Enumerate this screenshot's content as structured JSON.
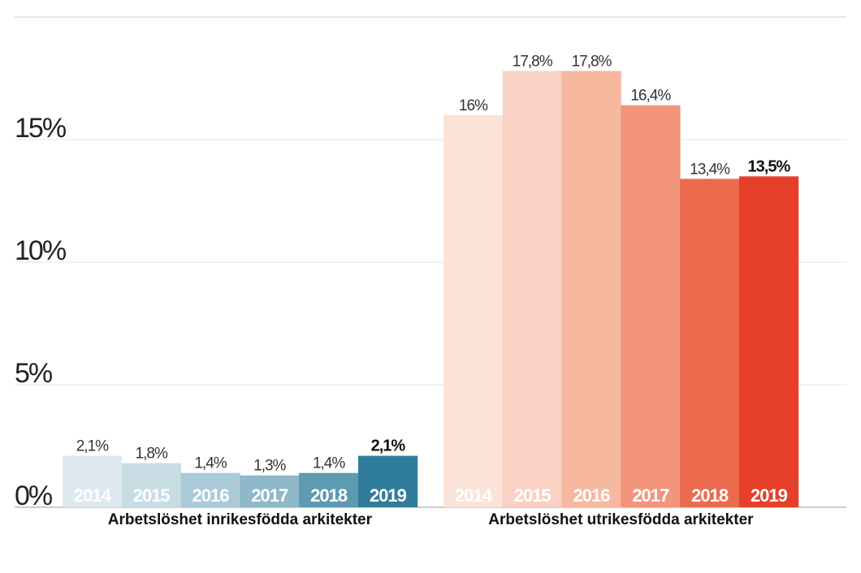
{
  "chart_data": {
    "type": "bar",
    "title": "",
    "xlabel": "",
    "ylabel": "",
    "ylim": [
      0,
      20
    ],
    "yticks": [
      {
        "value": 0,
        "label": "0%"
      },
      {
        "value": 5,
        "label": "5%"
      },
      {
        "value": 10,
        "label": "10%"
      },
      {
        "value": 15,
        "label": "15%"
      }
    ],
    "grid": true,
    "groups": [
      {
        "name": "Arbetslöshet inrikesfödda arkitekter",
        "categories": [
          "2014",
          "2015",
          "2016",
          "2017",
          "2018",
          "2019"
        ],
        "values": [
          2.1,
          1.8,
          1.4,
          1.3,
          1.4,
          2.1
        ],
        "labels": [
          "2,1%",
          "1,8%",
          "1,4%",
          "1,3%",
          "1,4%",
          "2,1%"
        ],
        "colors": [
          "#dde9ef",
          "#c8dce4",
          "#abcad7",
          "#8fb8c9",
          "#5e9ab1",
          "#2f7d9a"
        ]
      },
      {
        "name": "Arbetslöshet utrikesfödda arkitekter",
        "categories": [
          "2014",
          "2015",
          "2016",
          "2017",
          "2018",
          "2019"
        ],
        "values": [
          16,
          17.8,
          17.8,
          16.4,
          13.4,
          13.5
        ],
        "labels": [
          "16%",
          "17,8%",
          "17,8%",
          "16,4%",
          "13,4%",
          "13,5%"
        ],
        "colors": [
          "#fce3d7",
          "#f9d2c3",
          "#f6b9a0",
          "#f2957a",
          "#ec6b4f",
          "#e6402a"
        ]
      }
    ],
    "highlight_index": 5
  }
}
